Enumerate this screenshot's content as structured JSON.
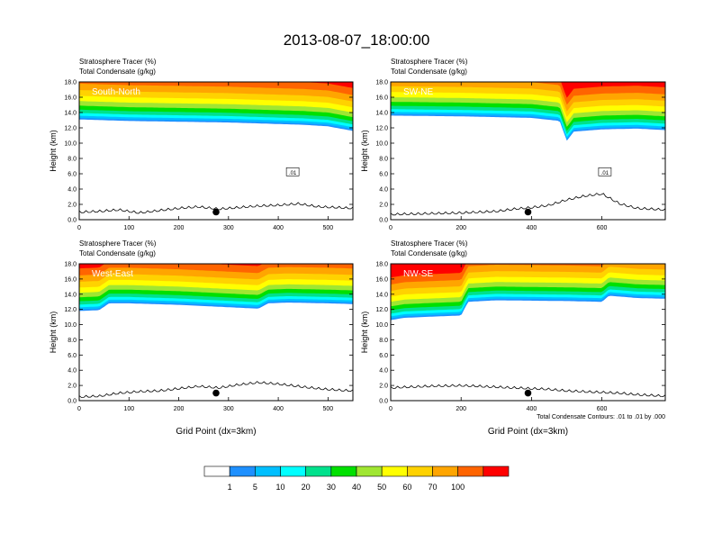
{
  "title": "2013-08-07_18:00:00",
  "colors": {
    "levels": [
      "#ffffff",
      "#1e90ff",
      "#00bfff",
      "#00ffff",
      "#00e18c",
      "#00e000",
      "#a0e632",
      "#ffff00",
      "#ffd200",
      "#ffa500",
      "#ff6400",
      "#ff0000"
    ],
    "line": "#000000"
  },
  "colorbar": {
    "labels": [
      "1",
      "5",
      "10",
      "20",
      "30",
      "40",
      "50",
      "60",
      "70",
      "100"
    ]
  },
  "footnote": "Total Condensate Contours: .01 to .01 by .000",
  "chart_data": [
    {
      "type": "heatmap",
      "id": "south-north",
      "label": "South-North",
      "title_line1": "Stratosphere Tracer   (%)",
      "title_line2": "Total Condensate   (g/kg)",
      "ylabel": "Height (km)",
      "xlabel": "",
      "xlim": [
        0,
        550
      ],
      "ylim": [
        0,
        18
      ],
      "xticks": [
        0,
        100,
        200,
        300,
        400,
        500
      ],
      "yticks": [
        "0.0",
        "2.0",
        "4.0",
        "6.0",
        "8.0",
        "10.0",
        "12.0",
        "14.0",
        "16.0",
        "18.0"
      ],
      "tracer_base_km": {
        "x": [
          0,
          100,
          200,
          300,
          400,
          450,
          500,
          550
        ],
        "y": [
          13.1,
          12.9,
          12.8,
          12.7,
          12.5,
          12.4,
          12.2,
          11.6
        ]
      },
      "terrain_km": {
        "x": [
          0,
          40,
          80,
          120,
          160,
          200,
          240,
          280,
          320,
          360,
          400,
          440,
          480,
          520,
          550
        ],
        "y": [
          0.9,
          1.0,
          1.2,
          0.8,
          1.1,
          1.4,
          1.6,
          1.3,
          1.5,
          1.7,
          1.8,
          2.0,
          1.6,
          1.5,
          1.4
        ]
      },
      "marker_x": 275,
      "contour_label": ".01"
    },
    {
      "type": "heatmap",
      "id": "sw-ne",
      "label": "SW-NE",
      "title_line1": "Stratosphere Tracer   (%)",
      "title_line2": "Total Condensate   (g/kg)",
      "ylabel": "Height (km)",
      "xlabel": "",
      "xlim": [
        0,
        780
      ],
      "ylim": [
        0,
        18
      ],
      "xticks": [
        0,
        200,
        400,
        600
      ],
      "yticks": [
        "0.0",
        "2.0",
        "4.0",
        "6.0",
        "8.0",
        "10.0",
        "12.0",
        "14.0",
        "16.0",
        "18.0"
      ],
      "tracer_base_km": {
        "x": [
          0,
          200,
          400,
          480,
          500,
          520,
          600,
          700,
          780
        ],
        "y": [
          13.6,
          13.5,
          13.3,
          12.9,
          10.3,
          11.5,
          11.8,
          11.9,
          11.7
        ]
      },
      "terrain_km": {
        "x": [
          0,
          100,
          200,
          300,
          350,
          400,
          450,
          500,
          550,
          600,
          650,
          700,
          780
        ],
        "y": [
          0.6,
          0.7,
          0.8,
          1.0,
          1.3,
          1.5,
          1.8,
          2.5,
          3.0,
          3.3,
          2.0,
          1.4,
          1.2
        ]
      },
      "marker_x": 390,
      "contour_label": ".01"
    },
    {
      "type": "heatmap",
      "id": "west-east",
      "label": "West-East",
      "title_line1": "Stratosphere Tracer   (%)",
      "title_line2": "Total Condensate   (g/kg)",
      "ylabel": "Height (km)",
      "xlabel": "Grid Point (dx=3km)",
      "xlim": [
        0,
        550
      ],
      "ylim": [
        0,
        18
      ],
      "xticks": [
        0,
        100,
        200,
        300,
        400,
        500
      ],
      "yticks": [
        "0.0",
        "2.0",
        "4.0",
        "6.0",
        "8.0",
        "10.0",
        "12.0",
        "14.0",
        "16.0",
        "18.0"
      ],
      "tracer_base_km": {
        "x": [
          0,
          40,
          60,
          100,
          200,
          360,
          380,
          420,
          500,
          550
        ],
        "y": [
          11.8,
          11.9,
          12.8,
          12.8,
          12.6,
          12.1,
          12.8,
          12.9,
          12.8,
          12.7
        ]
      },
      "terrain_km": {
        "x": [
          0,
          40,
          80,
          120,
          160,
          200,
          240,
          280,
          320,
          360,
          400,
          440,
          480,
          520,
          550
        ],
        "y": [
          0.4,
          0.5,
          0.9,
          1.1,
          1.2,
          1.5,
          1.8,
          1.6,
          2.0,
          2.3,
          2.1,
          1.8,
          1.5,
          1.3,
          1.2
        ]
      },
      "marker_x": 275,
      "contour_label": ""
    },
    {
      "type": "heatmap",
      "id": "nw-se",
      "label": "NW-SE",
      "title_line1": "Stratosphere Tracer   (%)",
      "title_line2": "Total Condensate   (g/kg)",
      "ylabel": "Height (km)",
      "xlabel": "Grid Point (dx=3km)",
      "xlim": [
        0,
        780
      ],
      "ylim": [
        0,
        18
      ],
      "xticks": [
        0,
        200,
        400,
        600
      ],
      "yticks": [
        "0.0",
        "2.0",
        "4.0",
        "6.0",
        "8.0",
        "10.0",
        "12.0",
        "14.0",
        "16.0",
        "18.0"
      ],
      "tracer_base_km": {
        "x": [
          0,
          40,
          200,
          220,
          300,
          500,
          600,
          620,
          700,
          780
        ],
        "y": [
          10.6,
          10.9,
          11.2,
          13.0,
          13.2,
          13.1,
          13.0,
          13.8,
          13.5,
          13.4
        ]
      },
      "terrain_km": {
        "x": [
          0,
          100,
          200,
          300,
          350,
          400,
          450,
          500,
          550,
          600,
          650,
          700,
          780
        ],
        "y": [
          1.6,
          1.8,
          1.9,
          1.7,
          1.6,
          1.5,
          1.4,
          1.2,
          1.1,
          1.0,
          0.9,
          0.7,
          0.5
        ]
      },
      "marker_x": 390,
      "contour_label": ""
    }
  ]
}
